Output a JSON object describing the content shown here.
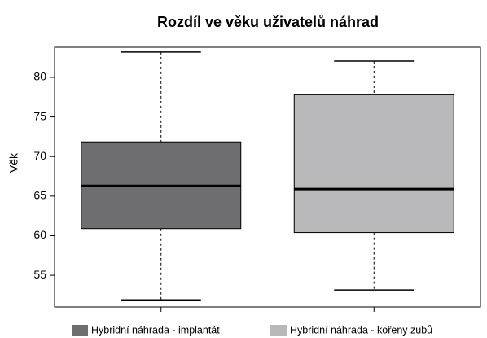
{
  "chart_data": {
    "type": "box",
    "title": "Rozdíl ve věku uživatelů náhrad",
    "y_label": "Věk",
    "series": [
      {
        "name": "Hybridní náhrada - implantát",
        "color": "#6e6e70",
        "min": 51.9,
        "q1": 60.9,
        "median": 66.3,
        "q3": 71.85,
        "max": 83.2
      },
      {
        "name": "Hybridní náhrada - kořeny zubů",
        "color": "#b9b9bb",
        "min": 53.15,
        "q1": 60.4,
        "median": 65.9,
        "q3": 77.8,
        "max": 82.05
      }
    ],
    "ylim": [
      51,
      83.8
    ],
    "yticks": [
      55,
      60,
      65,
      70,
      75,
      80
    ]
  }
}
